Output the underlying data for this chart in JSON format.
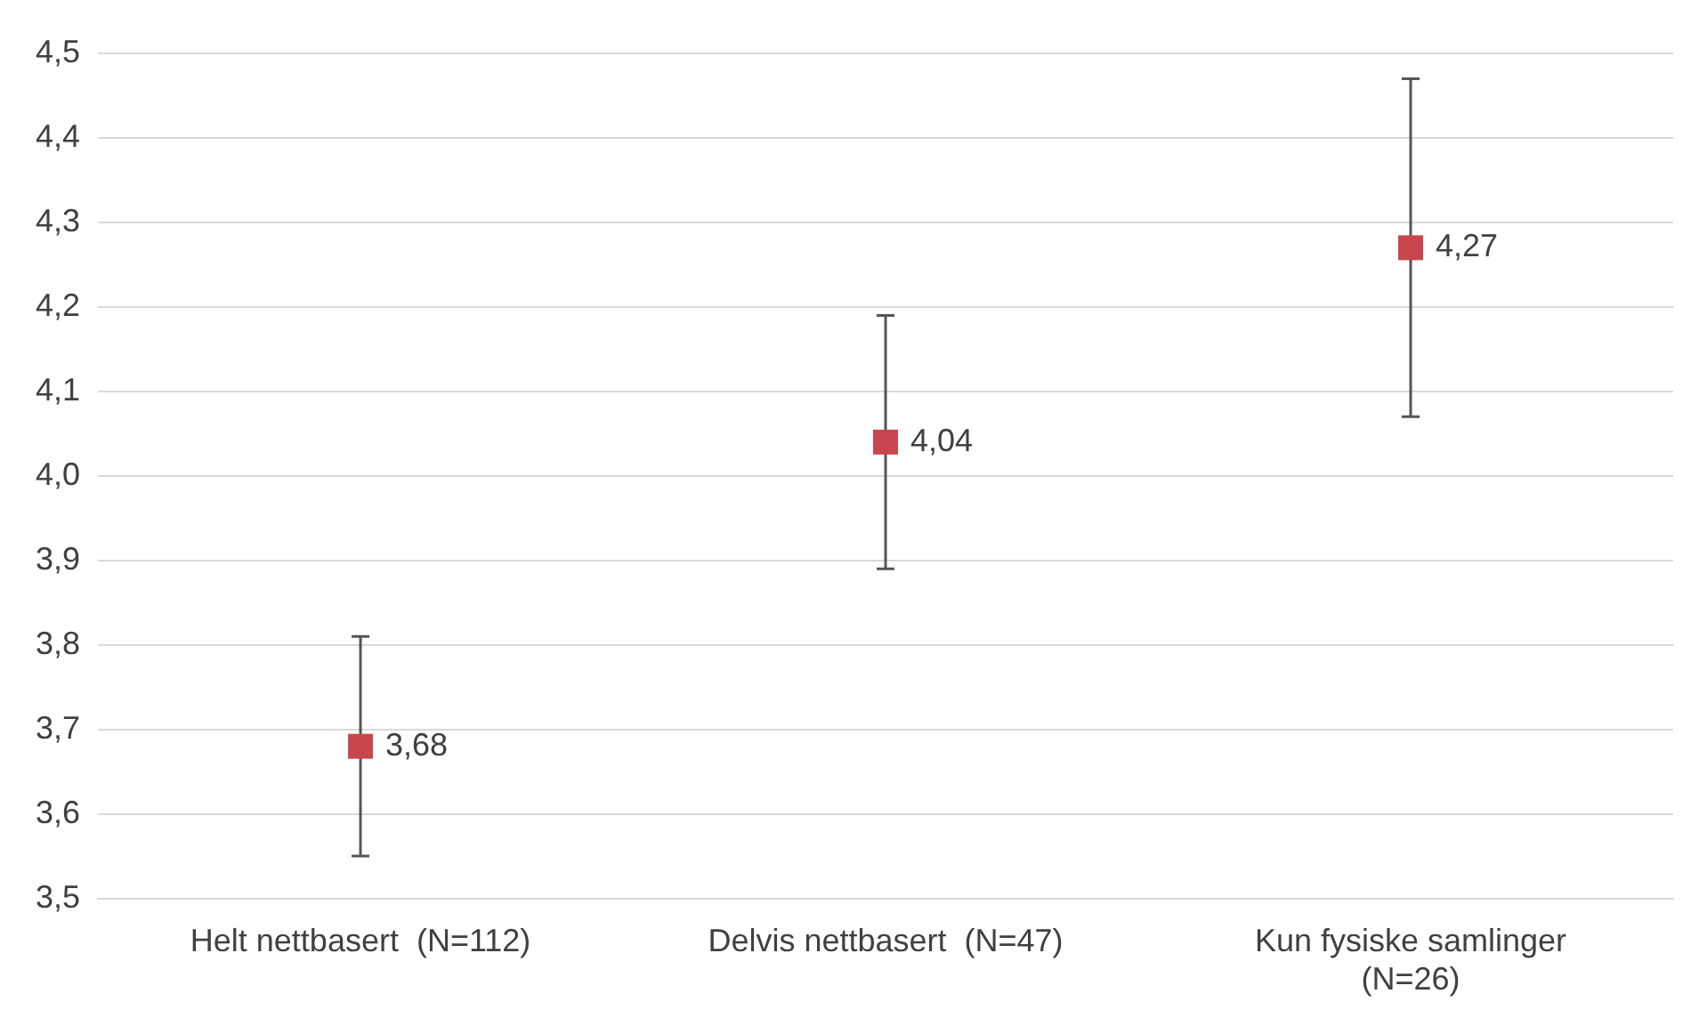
{
  "chart_data": {
    "type": "scatter",
    "categories": [
      "Helt nettbasert  (N=112)",
      "Delvis nettbasert  (N=47)",
      "Kun fysiske samlinger (N=26)"
    ],
    "values": [
      3.68,
      4.04,
      4.27
    ],
    "errors": [
      [
        3.55,
        3.81
      ],
      [
        3.89,
        4.19
      ],
      [
        4.07,
        4.47
      ]
    ],
    "color": "#c8474f",
    "marker": "square",
    "data_labels": true,
    "value_labels": [
      "3,68",
      "4,04",
      "4,27"
    ],
    "ylim": [
      3.5,
      4.5
    ],
    "yticks": [
      {
        "value": 3.5,
        "label": "3,5"
      },
      {
        "value": 3.6,
        "label": "3,6"
      },
      {
        "value": 3.7,
        "label": "3,7"
      },
      {
        "value": 3.8,
        "label": "3,8"
      },
      {
        "value": 3.9,
        "label": "3,9"
      },
      {
        "value": 4.0,
        "label": "4,0"
      },
      {
        "value": 4.1,
        "label": "4,1"
      },
      {
        "value": 4.2,
        "label": "4,2"
      },
      {
        "value": 4.3,
        "label": "4,3"
      },
      {
        "value": 4.4,
        "label": "4,4"
      },
      {
        "value": 4.5,
        "label": "4,5"
      }
    ],
    "grid": "y",
    "legend": false
  }
}
